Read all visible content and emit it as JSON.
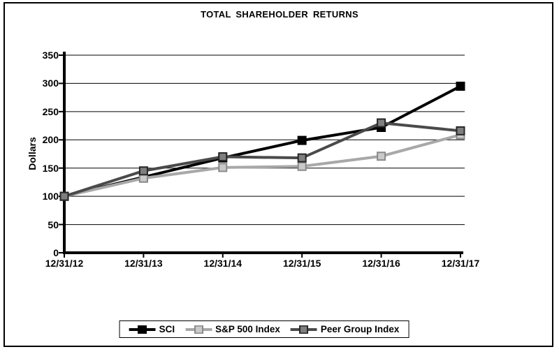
{
  "chart_data": {
    "type": "line",
    "title": "TOTAL SHAREHOLDER RETURNS",
    "xlabel": "",
    "ylabel": "Dollars",
    "categories": [
      "12/31/12",
      "12/31/13",
      "12/31/14",
      "12/31/15",
      "12/31/16",
      "12/31/17"
    ],
    "y_ticks": [
      0,
      50,
      100,
      150,
      200,
      250,
      300,
      350
    ],
    "ylim": [
      0,
      350
    ],
    "grid": true,
    "legend_position": "bottom",
    "background": "#ffffff",
    "border_color": "#000000",
    "grid_color": "#000000",
    "axis_color": "#000000",
    "series": [
      {
        "name": "SCI",
        "color": "#000000",
        "marker_fill": "#000000",
        "marker_border": "#000000",
        "values": [
          100,
          134,
          168,
          199,
          222,
          295
        ]
      },
      {
        "name": "S&P 500 Index",
        "color": "#a8a8a8",
        "marker_fill": "#c9c9c9",
        "marker_border": "#8a8a8a",
        "values": [
          100,
          132,
          151,
          153,
          171,
          209
        ]
      },
      {
        "name": "Peer Group Index",
        "color": "#4a4a4a",
        "marker_fill": "#7f7f7f",
        "marker_border": "#262626",
        "values": [
          100,
          145,
          170,
          168,
          230,
          216
        ]
      }
    ]
  }
}
